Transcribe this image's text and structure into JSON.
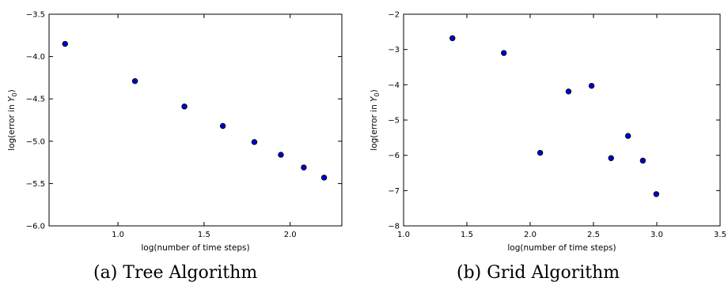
{
  "chart_data": [
    {
      "type": "scatter",
      "caption": "(a) Tree Algorithm",
      "xlabel": "log(number of time steps)",
      "ylabel": "log(error in Y_0)",
      "xlim": [
        0.6,
        2.3
      ],
      "ylim": [
        -6.0,
        -3.5
      ],
      "x_ticks": [
        1.0,
        1.5,
        2.0
      ],
      "x_tick_labels": [
        "1.0",
        "1.5",
        "2.0"
      ],
      "y_ticks": [
        -3.5,
        -4.0,
        -4.5,
        -5.0,
        -5.5,
        -6.0
      ],
      "y_tick_labels": [
        "−3.5",
        "−4.0",
        "−4.5",
        "−5.0",
        "−5.5",
        "−6.0"
      ],
      "grid": false,
      "marker_color": "#0000cc",
      "x": [
        0.693,
        1.099,
        1.386,
        1.609,
        1.792,
        1.946,
        2.079,
        2.197
      ],
      "y": [
        -3.85,
        -4.29,
        -4.59,
        -4.82,
        -5.01,
        -5.16,
        -5.31,
        -5.43
      ]
    },
    {
      "type": "scatter",
      "caption": "(b) Grid Algorithm",
      "xlabel": "log(number of time steps)",
      "ylabel": "log(error in Y_0)",
      "xlim": [
        1.0,
        3.5
      ],
      "ylim": [
        -8,
        -2
      ],
      "x_ticks": [
        1.0,
        1.5,
        2.0,
        2.5,
        3.0,
        3.5
      ],
      "x_tick_labels": [
        "1.0",
        "1.5",
        "2.0",
        "2.5",
        "3.0",
        "3.5"
      ],
      "y_ticks": [
        -2,
        -3,
        -4,
        -5,
        -6,
        -7,
        -8
      ],
      "y_tick_labels": [
        "−2",
        "−3",
        "−4",
        "−5",
        "−6",
        "−7",
        "−8"
      ],
      "grid": false,
      "marker_color": "#0000cc",
      "x": [
        1.386,
        1.792,
        2.079,
        2.303,
        2.485,
        2.639,
        2.773,
        2.89,
        2.996
      ],
      "y": [
        -2.68,
        -3.1,
        -5.93,
        -4.19,
        -4.03,
        -6.08,
        -5.45,
        -6.15,
        -7.1
      ]
    }
  ]
}
